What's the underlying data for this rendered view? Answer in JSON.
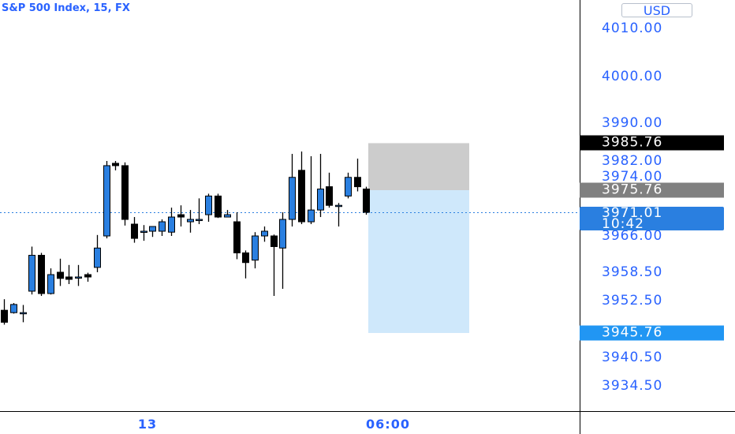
{
  "header": {
    "title": "S&P 500 Index, 15, FX",
    "currency": "USD"
  },
  "colors": {
    "up": "#2a7fe0",
    "down": "#000000",
    "accent": "#2962ff",
    "last": "#2a7fe0",
    "target_zone": "#cfe8fb",
    "stop_zone": "#cccccc",
    "gray_label": "#808080",
    "blue_label": "#2196f3",
    "black_label": "#000000"
  },
  "chart_data": {
    "type": "candlestick",
    "title": "S&P 500 Index, 15, FX",
    "y_axis": {
      "currency": "USD",
      "tick_labels": [
        "4010.00",
        "4000.00",
        "3990.00",
        "3982.00",
        "3974.00",
        "3966.00",
        "3958.50",
        "3952.50",
        "3940.50",
        "3934.50"
      ]
    },
    "x_axis": {
      "tick_labels": [
        "13",
        "06:00"
      ]
    },
    "price_labels": [
      {
        "name": "stop",
        "text": "3985.76",
        "value": 3985.76,
        "style": "black"
      },
      {
        "name": "entry",
        "text": "3975.76",
        "value": 3975.76,
        "style": "gray"
      },
      {
        "name": "last",
        "text": "3971.01",
        "sub": "10:42",
        "value": 3971.01,
        "style": "last"
      },
      {
        "name": "target",
        "text": "3945.76",
        "value": 3945.76,
        "style": "blue"
      }
    ],
    "position_tool": {
      "type": "short",
      "entry": 3975.76,
      "stop": 3985.76,
      "target": 3945.76
    },
    "candles": [
      {
        "o": 3950.5,
        "h": 3952.8,
        "l": 3947.5,
        "c": 3948.0
      },
      {
        "o": 3950.0,
        "h": 3952.0,
        "l": 3949.8,
        "c": 3951.7
      },
      {
        "o": 3950.0,
        "h": 3951.6,
        "l": 3948.0,
        "c": 3950.0
      },
      {
        "o": 3954.5,
        "h": 3963.8,
        "l": 3953.8,
        "c": 3962.0
      },
      {
        "o": 3962.0,
        "h": 3962.5,
        "l": 3953.5,
        "c": 3954.0
      },
      {
        "o": 3954.0,
        "h": 3959.3,
        "l": 3953.8,
        "c": 3958.0
      },
      {
        "o": 3958.5,
        "h": 3961.3,
        "l": 3955.6,
        "c": 3957.2
      },
      {
        "o": 3957.5,
        "h": 3960.0,
        "l": 3956.0,
        "c": 3957.0
      },
      {
        "o": 3957.5,
        "h": 3960.0,
        "l": 3955.6,
        "c": 3957.5
      },
      {
        "o": 3958.0,
        "h": 3958.4,
        "l": 3956.5,
        "c": 3957.5
      },
      {
        "o": 3959.5,
        "h": 3966.2,
        "l": 3958.5,
        "c": 3963.5
      },
      {
        "o": 3966.0,
        "h": 3982.0,
        "l": 3965.5,
        "c": 3981.0
      },
      {
        "o": 3981.5,
        "h": 3982.0,
        "l": 3980.0,
        "c": 3981.0
      },
      {
        "o": 3981.0,
        "h": 3981.7,
        "l": 3968.2,
        "c": 3969.5
      },
      {
        "o": 3968.5,
        "h": 3970.0,
        "l": 3964.6,
        "c": 3965.5
      },
      {
        "o": 3967.0,
        "h": 3968.3,
        "l": 3965.0,
        "c": 3967.0
      },
      {
        "o": 3967.0,
        "h": 3967.9,
        "l": 3965.8,
        "c": 3968.0
      },
      {
        "o": 3967.0,
        "h": 3969.5,
        "l": 3966.0,
        "c": 3969.0
      },
      {
        "o": 3966.8,
        "h": 3972.0,
        "l": 3966.0,
        "c": 3970.0
      },
      {
        "o": 3970.5,
        "h": 3972.5,
        "l": 3968.0,
        "c": 3970.0
      },
      {
        "o": 3969.0,
        "h": 3971.5,
        "l": 3966.7,
        "c": 3969.5
      },
      {
        "o": 3969.5,
        "h": 3974.0,
        "l": 3968.5,
        "c": 3969.5
      },
      {
        "o": 3970.5,
        "h": 3975.0,
        "l": 3969.0,
        "c": 3974.5
      },
      {
        "o": 3974.5,
        "h": 3975.0,
        "l": 3969.8,
        "c": 3970.0
      },
      {
        "o": 3970.0,
        "h": 3971.5,
        "l": 3970.0,
        "c": 3970.5
      },
      {
        "o": 3969.0,
        "h": 3971.0,
        "l": 3961.2,
        "c": 3962.5
      },
      {
        "o": 3962.5,
        "h": 3963.0,
        "l": 3957.2,
        "c": 3960.5
      },
      {
        "o": 3961.0,
        "h": 3966.8,
        "l": 3959.3,
        "c": 3966.0
      },
      {
        "o": 3966.0,
        "h": 3968.0,
        "l": 3964.8,
        "c": 3967.0
      },
      {
        "o": 3966.0,
        "h": 3966.3,
        "l": 3953.5,
        "c": 3963.8
      },
      {
        "o": 3963.5,
        "h": 3971.0,
        "l": 3955.0,
        "c": 3969.5
      },
      {
        "o": 3969.5,
        "h": 3983.5,
        "l": 3968.0,
        "c": 3978.5
      },
      {
        "o": 3980.0,
        "h": 3984.0,
        "l": 3968.5,
        "c": 3969.0
      },
      {
        "o": 3969.0,
        "h": 3983.0,
        "l": 3968.5,
        "c": 3971.5
      },
      {
        "o": 3971.5,
        "h": 3983.5,
        "l": 3970.0,
        "c": 3976.0
      },
      {
        "o": 3976.5,
        "h": 3979.5,
        "l": 3972.0,
        "c": 3972.5
      },
      {
        "o": 3972.5,
        "h": 3973.0,
        "l": 3968.0,
        "c": 3972.5
      },
      {
        "o": 3974.5,
        "h": 3979.5,
        "l": 3974.0,
        "c": 3978.5
      },
      {
        "o": 3978.5,
        "h": 3982.5,
        "l": 3975.5,
        "c": 3976.5
      },
      {
        "o": 3976.0,
        "h": 3976.5,
        "l": 3970.5,
        "c": 3971.0
      }
    ]
  }
}
